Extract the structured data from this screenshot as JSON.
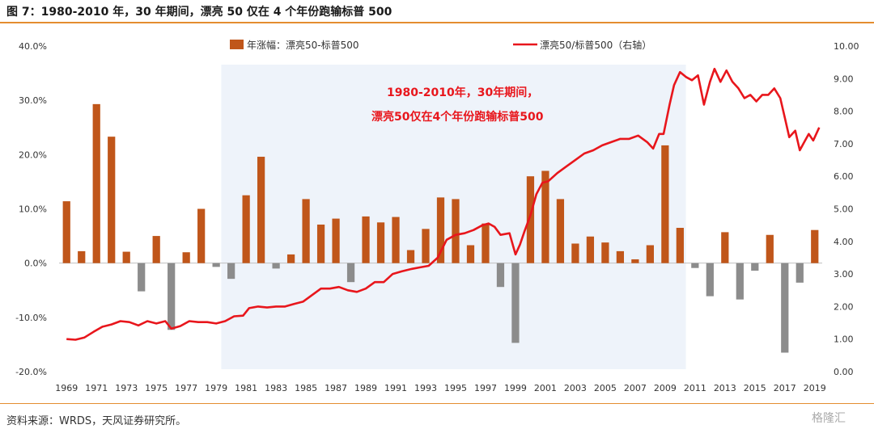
{
  "title": "图 7：1980-2010 年，30 年期间，漂亮 50 仅在 4 个年份跑输标普 500",
  "source": "资料来源：WRDS，天风证券研究所。",
  "watermark": "格隆汇",
  "chart_data": {
    "type": "bar",
    "title": "",
    "categories": [
      "1969",
      "1970",
      "1971",
      "1972",
      "1973",
      "1974",
      "1975",
      "1976",
      "1977",
      "1978",
      "1979",
      "1980",
      "1981",
      "1982",
      "1983",
      "1984",
      "1985",
      "1986",
      "1987",
      "1988",
      "1989",
      "1990",
      "1991",
      "1992",
      "1993",
      "1994",
      "1995",
      "1996",
      "1997",
      "1998",
      "1999",
      "2000",
      "2001",
      "2002",
      "2003",
      "2004",
      "2005",
      "2006",
      "2007",
      "2008",
      "2009",
      "2010",
      "2011",
      "2012",
      "2013",
      "2014",
      "2015",
      "2016",
      "2017",
      "2018",
      "2019"
    ],
    "x_tick_labels": [
      "1969",
      "1971",
      "1973",
      "1975",
      "1977",
      "1979",
      "1981",
      "1983",
      "1985",
      "1987",
      "1989",
      "1991",
      "1993",
      "1995",
      "1997",
      "1999",
      "2001",
      "2003",
      "2005",
      "2007",
      "2009",
      "2011",
      "2013",
      "2015",
      "2017",
      "2019"
    ],
    "series": [
      {
        "name": "年涨幅：漂亮50-标普500",
        "axis": "left",
        "values": [
          11.4,
          2.2,
          29.3,
          23.3,
          2.1,
          -5.2,
          5.0,
          -12.3,
          2.0,
          10.0,
          -0.7,
          -2.9,
          12.5,
          19.6,
          -1.0,
          1.6,
          11.8,
          7.1,
          8.2,
          -3.5,
          8.6,
          7.5,
          8.5,
          2.4,
          6.3,
          12.1,
          11.8,
          3.3,
          7.3,
          -4.4,
          -14.7,
          16.0,
          17.0,
          11.8,
          3.6,
          4.9,
          3.8,
          2.2,
          0.7,
          3.3,
          21.7,
          6.5,
          -0.9,
          -6.1,
          5.7,
          -6.7,
          -1.4,
          5.2,
          -16.5,
          -3.6,
          6.1
        ]
      },
      {
        "name": "漂亮50/标普500（右轴）",
        "axis": "right",
        "type": "line",
        "x": [
          1969.0,
          1969.6,
          1970.2,
          1970.8,
          1971.4,
          1972.0,
          1972.6,
          1973.2,
          1973.8,
          1974.4,
          1975.0,
          1975.6,
          1976.0,
          1976.6,
          1977.2,
          1977.8,
          1978.4,
          1979.0,
          1979.6,
          1980.2,
          1980.8,
          1981.2,
          1981.8,
          1982.4,
          1983.0,
          1983.6,
          1984.2,
          1984.8,
          1985.4,
          1986.0,
          1986.6,
          1987.2,
          1987.8,
          1988.4,
          1989.0,
          1989.6,
          1990.2,
          1990.8,
          1991.4,
          1992.0,
          1992.6,
          1993.2,
          1993.8,
          1994.4,
          1995.0,
          1995.6,
          1996.2,
          1996.8,
          1997.2,
          1997.6,
          1998.0,
          1998.6,
          1999.0,
          1999.3,
          1999.6,
          2000.0,
          2000.4,
          2000.8,
          2001.2,
          2001.8,
          2002.4,
          2003.0,
          2003.6,
          2004.2,
          2004.8,
          2005.4,
          2006.0,
          2006.6,
          2007.2,
          2007.8,
          2008.2,
          2008.6,
          2008.9,
          2009.3,
          2009.6,
          2010.0,
          2010.4,
          2010.8,
          2011.2,
          2011.6,
          2012.0,
          2012.3,
          2012.7,
          2013.1,
          2013.5,
          2013.9,
          2014.3,
          2014.7,
          2015.1,
          2015.5,
          2015.9,
          2016.3,
          2016.7,
          2017.0,
          2017.3,
          2017.7,
          2018.0,
          2018.3,
          2018.6,
          2018.9,
          2019.3
        ],
        "y": [
          1.0,
          0.98,
          1.05,
          1.22,
          1.38,
          1.45,
          1.55,
          1.52,
          1.42,
          1.55,
          1.48,
          1.55,
          1.32,
          1.4,
          1.55,
          1.52,
          1.52,
          1.48,
          1.55,
          1.7,
          1.72,
          1.95,
          2.0,
          1.97,
          2.0,
          2.0,
          2.08,
          2.15,
          2.35,
          2.55,
          2.55,
          2.6,
          2.5,
          2.45,
          2.55,
          2.75,
          2.75,
          3.0,
          3.08,
          3.15,
          3.2,
          3.25,
          3.5,
          4.05,
          4.2,
          4.25,
          4.35,
          4.5,
          4.55,
          4.45,
          4.2,
          4.25,
          3.6,
          3.9,
          4.3,
          4.8,
          5.45,
          5.8,
          5.85,
          6.1,
          6.3,
          6.5,
          6.7,
          6.8,
          6.95,
          7.05,
          7.15,
          7.15,
          7.25,
          7.05,
          6.85,
          7.3,
          7.3,
          8.2,
          8.8,
          9.2,
          9.05,
          8.95,
          9.1,
          8.2,
          8.9,
          9.3,
          8.9,
          9.25,
          8.9,
          8.7,
          8.4,
          8.5,
          8.3,
          8.5,
          8.5,
          8.7,
          8.4,
          7.8,
          7.2,
          7.4,
          6.8,
          7.05,
          7.3,
          7.1,
          7.5
        ],
        "color": "#E8161C"
      }
    ],
    "bar_colors": {
      "positive": "#C0561A",
      "negative": "#8C8C8C"
    },
    "line_color": "#E8161C",
    "shade_color": "#EEF3FA",
    "shaded_range": [
      1980,
      2010
    ],
    "ylim_left": [
      -20,
      40
    ],
    "yticks_left": [
      -20,
      -10,
      0,
      10,
      20,
      30,
      40
    ],
    "yticks_left_labels": [
      "-20.0%",
      "-10.0%",
      "0.0%",
      "10.0%",
      "20.0%",
      "30.0%",
      "40.0%"
    ],
    "ylim_right": [
      0,
      10
    ],
    "yticks_right": [
      0,
      1,
      2,
      3,
      4,
      5,
      6,
      7,
      8,
      9,
      10
    ],
    "yticks_right_labels": [
      "0.00",
      "1.00",
      "2.00",
      "3.00",
      "4.00",
      "5.00",
      "6.00",
      "7.00",
      "8.00",
      "9.00",
      "10.00"
    ],
    "legend": {
      "bar_label": "年涨幅：漂亮50-标普500",
      "line_label": "漂亮50/标普500（右轴）",
      "position": "top"
    },
    "annotation": {
      "line1": "1980-2010年，30年期间，",
      "line2": "漂亮50仅在4个年份跑输标普500",
      "color": "#E8161C"
    }
  }
}
